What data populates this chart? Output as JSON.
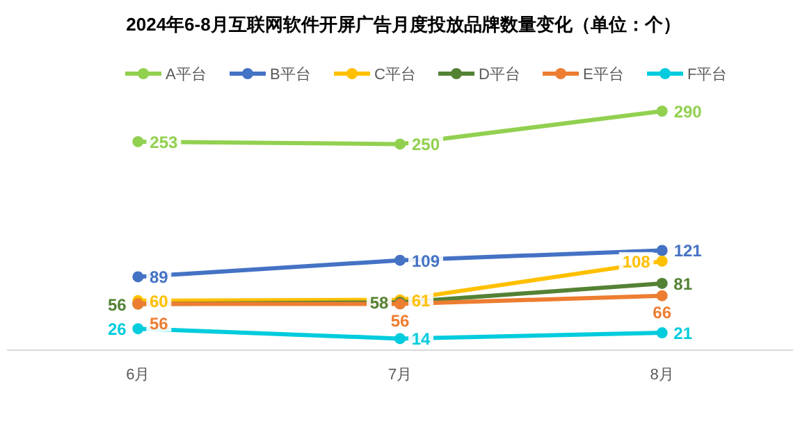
{
  "chart_data": {
    "type": "line",
    "title": "2024年6-8月互联网软件开屏广告月度投放品牌数量变化（单位：个）",
    "categories": [
      "6月",
      "7月",
      "8月"
    ],
    "tick_labels": "x",
    "legend": "top",
    "marker": "circle",
    "data_labels": true,
    "series": [
      {
        "name": "A平台",
        "color": "#92d050",
        "values": [
          253,
          250,
          290
        ]
      },
      {
        "name": "B平台",
        "color": "#4472c4",
        "values": [
          89,
          109,
          121
        ]
      },
      {
        "name": "C平台",
        "color": "#ffc000",
        "values": [
          60,
          61,
          108
        ]
      },
      {
        "name": "D平台",
        "color": "#548235",
        "values": [
          56,
          58,
          81
        ]
      },
      {
        "name": "E平台",
        "color": "#ed7d31",
        "values": [
          56,
          56,
          66
        ]
      },
      {
        "name": "F平台",
        "color": "#00ccdd",
        "values": [
          26,
          14,
          21
        ]
      }
    ]
  }
}
